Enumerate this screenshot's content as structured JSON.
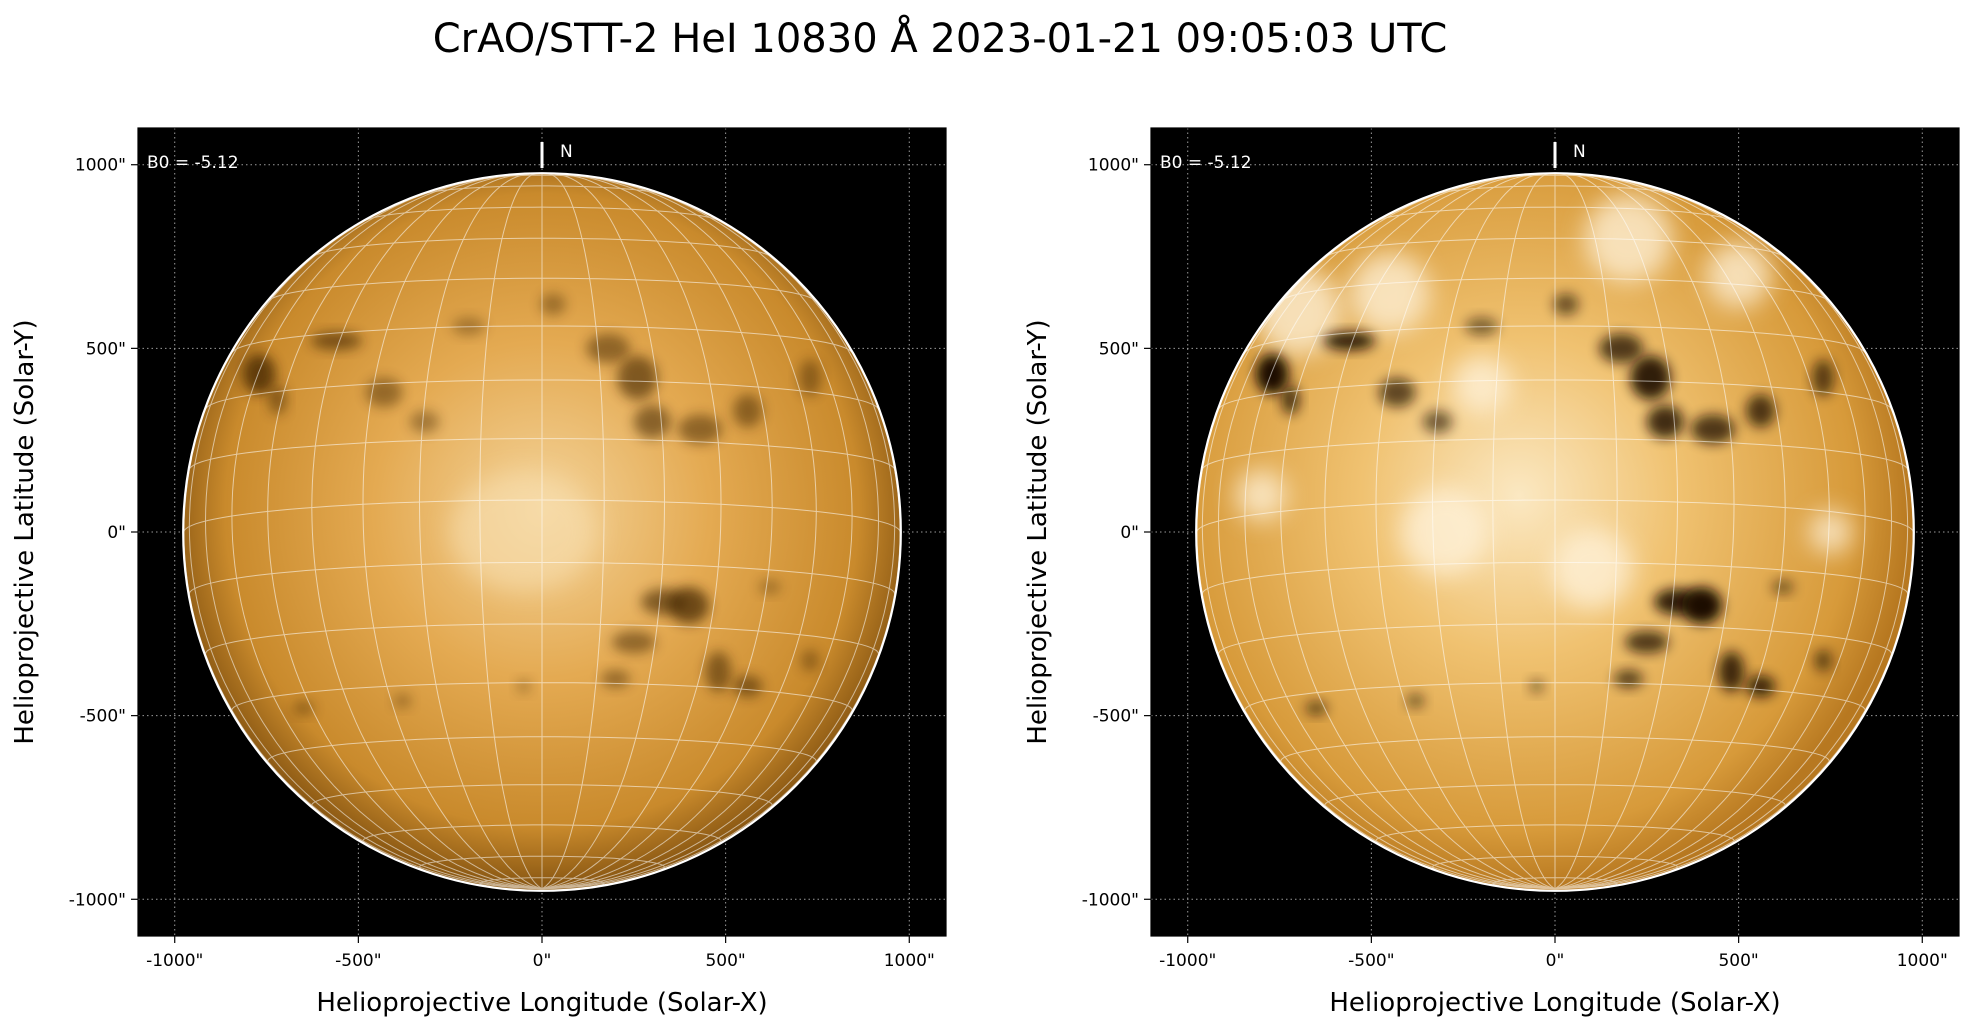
{
  "figure": {
    "title": "CrAO/STT-2 HeI 10830 Å 2023-01-21 09:05:03 UTC"
  },
  "panels": [
    {
      "id": "left",
      "display": "standard",
      "b0_label": "B0 = -5.12",
      "north_label": "N",
      "xlabel": "Helioprojective Longitude (Solar-X)",
      "ylabel": "Helioprojective Latitude (Solar-Y)",
      "xticks": [
        "-1000\"",
        "-500\"",
        "0\"",
        "500\"",
        "1000\""
      ],
      "yticks": [
        "1000\"",
        "500\"",
        "0\"",
        "-500\"",
        "-1000\""
      ]
    },
    {
      "id": "right",
      "display": "enhanced contrast",
      "b0_label": "B0 = -5.12",
      "north_label": "N",
      "xlabel": "Helioprojective Longitude (Solar-X)",
      "ylabel": "Helioprojective Latitude (Solar-Y)",
      "xticks": [
        "-1000\"",
        "-500\"",
        "0\"",
        "500\"",
        "1000\""
      ],
      "yticks": [
        "1000\"",
        "500\"",
        "0\"",
        "-500\"",
        "-1000\""
      ]
    }
  ],
  "axis_range_arcsec": {
    "x": [
      -1100,
      1100
    ],
    "y": [
      -1100,
      1100
    ]
  },
  "tick_values_arcsec": [
    -1000,
    -500,
    0,
    500,
    1000
  ],
  "solar_radius_arcsec": 975,
  "b0_degrees": -5.12,
  "colors": {
    "background": "#000000",
    "disk_light": "#f6d9a2",
    "disk_mid": "#d99a3c",
    "disk_dark": "#8a5a16",
    "grid": "#ffffff",
    "limb": "#ffffff"
  }
}
